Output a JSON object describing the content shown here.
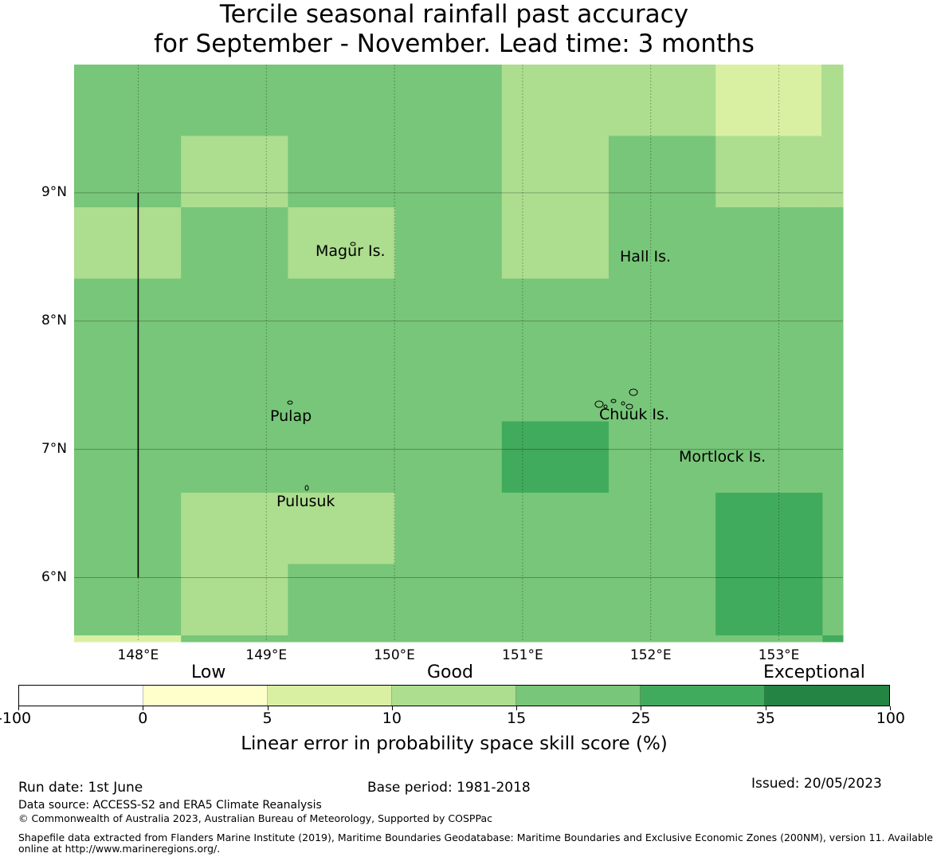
{
  "title": {
    "line1": "Tercile seasonal rainfall past accuracy",
    "line2": "for September - November. Lead time: 3 months"
  },
  "map": {
    "lon_range": [
      147.5,
      153.5
    ],
    "lat_range": [
      5.5,
      10.0
    ],
    "lon_ticks": [
      {
        "value": 148,
        "label": "148°E"
      },
      {
        "value": 149,
        "label": "149°E"
      },
      {
        "value": 150,
        "label": "150°E"
      },
      {
        "value": 151,
        "label": "151°E"
      },
      {
        "value": 152,
        "label": "152°E"
      },
      {
        "value": 153,
        "label": "153°E"
      }
    ],
    "lat_ticks": [
      {
        "value": 9,
        "label": "9°N"
      },
      {
        "value": 8,
        "label": "8°N"
      },
      {
        "value": 7,
        "label": "7°N"
      },
      {
        "value": 6,
        "label": "6°N"
      }
    ],
    "grid": true,
    "cell_size_deg": 0.8333,
    "skill_grid_columns_west_to_east": 8,
    "skill_grid_rows_north_to_south": 9,
    "skill_grid": [
      [
        20,
        20,
        20,
        20,
        12,
        12,
        7,
        12
      ],
      [
        20,
        12,
        20,
        20,
        12,
        20,
        12,
        12
      ],
      [
        12,
        20,
        12,
        20,
        12,
        20,
        20,
        20
      ],
      [
        20,
        20,
        20,
        20,
        20,
        20,
        20,
        20
      ],
      [
        20,
        20,
        20,
        20,
        20,
        20,
        20,
        20
      ],
      [
        20,
        20,
        20,
        20,
        30,
        20,
        20,
        20
      ],
      [
        20,
        12,
        12,
        20,
        20,
        20,
        30,
        20
      ],
      [
        20,
        12,
        20,
        20,
        20,
        20,
        30,
        20
      ],
      [
        7,
        20,
        20,
        20,
        20,
        20,
        20,
        30
      ]
    ],
    "places": [
      {
        "name": "Magur Is.",
        "lon": 149.65,
        "lat": 8.57
      },
      {
        "name": "Hall Is.",
        "lon": 151.75,
        "lat": 8.52
      },
      {
        "name": "Pulap",
        "lon": 149.15,
        "lat": 7.35
      },
      {
        "name": "Chuuk Is.",
        "lon": 151.6,
        "lat": 7.4
      },
      {
        "name": "Mortlock Is.",
        "lon": 152.6,
        "lat": 6.98
      },
      {
        "name": "Pulusuk",
        "lon": 149.3,
        "lat": 6.7
      }
    ],
    "boundary_line": {
      "lon": 148.0,
      "lat_from": 6.0,
      "lat_to": 9.0
    }
  },
  "colorbar": {
    "categories": [
      {
        "label": "Low"
      },
      {
        "label": "Good"
      },
      {
        "label": "Exceptional"
      }
    ],
    "bins": [
      {
        "from": -100,
        "to": 0,
        "color": "#ffffff"
      },
      {
        "from": 0,
        "to": 5,
        "color": "#ffffcc"
      },
      {
        "from": 5,
        "to": 10,
        "color": "#d9f0a3"
      },
      {
        "from": 10,
        "to": 15,
        "color": "#addd8e"
      },
      {
        "from": 15,
        "to": 25,
        "color": "#78c679"
      },
      {
        "from": 25,
        "to": 35,
        "color": "#41ab5d"
      },
      {
        "from": 35,
        "to": 100,
        "color": "#238443"
      }
    ],
    "ticks": [
      "-100",
      "0",
      "5",
      "10",
      "15",
      "25",
      "35",
      "100"
    ],
    "label": "Linear error in probability space skill score (%)"
  },
  "footer": {
    "run_date": "Run date: 1st June",
    "base_period": "Base period: 1981-2018",
    "issued": "Issued: 20/05/2023",
    "data_source": "Data source: ACCESS-S2 and ERA5 Climate Reanalysis",
    "copyright": "© Commonwealth of Australia 2023, Australian Bureau of Meteorology, Supported by COSPPac",
    "shapefile_line1": "Shapefile data extracted from Flanders Marine Institute (2019), Maritime Boundaries Geodatabase: Maritime Boundaries and Exclusive Economic Zones (200NM), version 11. Available",
    "shapefile_line2": "online at http://www.marineregions.org/."
  }
}
